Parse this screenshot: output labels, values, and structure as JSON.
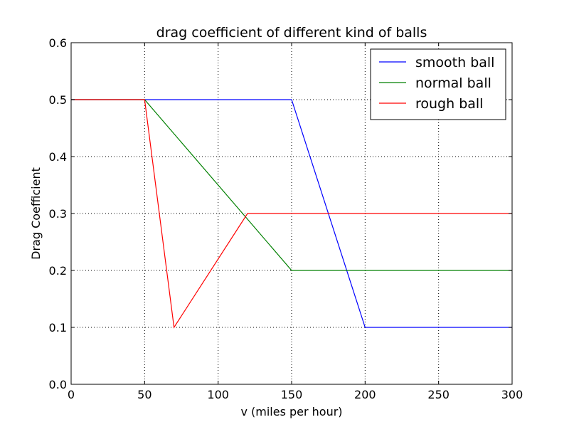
{
  "chart_data": {
    "type": "line",
    "title": "drag coefficient of different kind of balls",
    "xlabel": "v (miles per hour)",
    "ylabel": "Drag Coefficient",
    "xlim": [
      0,
      300
    ],
    "ylim": [
      0.0,
      0.6
    ],
    "xticks": [
      "0",
      "50",
      "100",
      "150",
      "200",
      "250",
      "300"
    ],
    "xtick_values": [
      0,
      50,
      100,
      150,
      200,
      250,
      300
    ],
    "yticks": [
      "0.0",
      "0.1",
      "0.2",
      "0.3",
      "0.4",
      "0.5",
      "0.6"
    ],
    "ytick_values": [
      0.0,
      0.1,
      0.2,
      0.3,
      0.4,
      0.5,
      0.6
    ],
    "grid": true,
    "legend_position": "top-right",
    "series": [
      {
        "name": "smooth ball",
        "color": "#0000ff",
        "x": [
          0,
          150,
          200,
          300
        ],
        "y": [
          0.5,
          0.5,
          0.1,
          0.1
        ]
      },
      {
        "name": "normal ball",
        "color": "#008000",
        "x": [
          0,
          50,
          150,
          300
        ],
        "y": [
          0.5,
          0.5,
          0.2,
          0.2
        ]
      },
      {
        "name": "rough ball",
        "color": "#ff0000",
        "x": [
          0,
          50,
          70,
          120,
          300
        ],
        "y": [
          0.5,
          0.5,
          0.1,
          0.3,
          0.3
        ]
      }
    ]
  }
}
